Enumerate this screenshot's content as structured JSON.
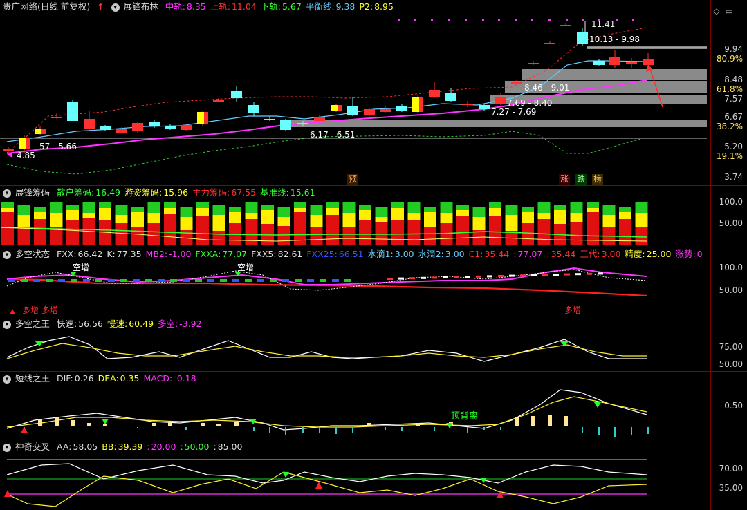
{
  "main": {
    "title": "贵广网络(日线 前复权)",
    "up_arrow": "↑",
    "indicator": "展锋布林",
    "items": [
      {
        "label": "中轨:",
        "value": "8.35",
        "color": "#ff33ff"
      },
      {
        "label": "上轨:",
        "value": "11.04",
        "color": "#ff3030"
      },
      {
        "label": "下轨:",
        "value": "5.67",
        "color": "#33ff33"
      },
      {
        "label": "平衡线:",
        "value": "9.38",
        "color": "#66ccff"
      },
      {
        "label": "P2:",
        "value": "8.95",
        "color": "#ffff33"
      }
    ],
    "right_axis": [
      "9.94",
      "80.9%",
      "8.48",
      "61.8%",
      "7.57",
      "6.67",
      "38.2%",
      "5.20",
      "19.1%",
      "3.74"
    ],
    "annotations": {
      "high": "11.41",
      "range1": "10.13 - 9.98",
      "range2": "8.46 - 9.01",
      "range3": "7.69 - 8.40",
      "range4": "7.27 - 7.69",
      "range5": "6.17 - 6.51",
      "range6": "57 - 5.66",
      "low": "4.85"
    },
    "tags": [
      {
        "text": "预",
        "color": "#ffb366"
      },
      {
        "text": "涨",
        "color": "#ff9999"
      },
      {
        "text": "跌",
        "color": "#99ff99"
      },
      {
        "text": "榜",
        "color": "#ffcc66"
      }
    ]
  },
  "chips": {
    "name": "展锋筹码",
    "items": [
      {
        "label": "散户筹码:",
        "value": "16.49",
        "color": "#33ff33"
      },
      {
        "label": "游资筹码:",
        "value": "15.96",
        "color": "#ffff33"
      },
      {
        "label": "主力筹码:",
        "value": "67.55",
        "color": "#ff3030"
      },
      {
        "label": "基准线:",
        "value": "15.61",
        "color": "#33ff33"
      }
    ],
    "axis": [
      "100.0",
      "50.00"
    ]
  },
  "longshort": {
    "name": "多空状态",
    "items": [
      {
        "label": "FXX:",
        "value": "66.42",
        "color": "#dddddd"
      },
      {
        "label": "K:",
        "value": "77.35",
        "color": "#dddddd"
      },
      {
        "label": "MB2:",
        "value": "-1.00",
        "color": "#ff33ff"
      },
      {
        "label": "FXXA:",
        "value": "77.07",
        "color": "#33ff33"
      },
      {
        "label": "FXX5:",
        "value": "82.61",
        "color": "#dddddd"
      },
      {
        "label": "FXX25:",
        "value": "66.51",
        "color": "#3355ff"
      },
      {
        "label": "水滴1:",
        "value": "3.00",
        "color": "#66ccff"
      },
      {
        "label": "水滴2:",
        "value": "3.00",
        "color": "#66ccff"
      },
      {
        "label": "C1:",
        "value": "35.44",
        "color": "#ff3030"
      },
      {
        "label": ":",
        "value": "77.07",
        "color": "#ff33ff"
      },
      {
        "label": ":",
        "value": "35.44",
        "color": "#ff3030"
      },
      {
        "label": "三代:",
        "value": "3.00",
        "color": "#ff3030"
      },
      {
        "label": "精度:",
        "value": "25.00",
        "color": "#ffff33"
      },
      {
        "label": "涨势:",
        "value": "0",
        "color": "#ff33ff"
      }
    ],
    "markers": {
      "kong": "空增",
      "duo": "多增"
    },
    "axis": [
      "100.0",
      "50.00"
    ]
  },
  "king": {
    "name": "多空之王",
    "items": [
      {
        "label": "快速:",
        "value": "56.56",
        "color": "#dddddd"
      },
      {
        "label": "慢速:",
        "value": "60.49",
        "color": "#ffff33"
      },
      {
        "label": "多空:",
        "value": "-3.92",
        "color": "#ff33ff"
      }
    ],
    "axis": [
      "75.00",
      "50.00"
    ]
  },
  "short": {
    "name": "短线之王",
    "items": [
      {
        "label": "DIF:",
        "value": "0.26",
        "color": "#dddddd"
      },
      {
        "label": "DEA:",
        "value": "0.35",
        "color": "#ffff33"
      },
      {
        "label": "MACD:",
        "value": "-0.18",
        "color": "#ff33ff"
      }
    ],
    "marker": "顶背离",
    "axis": [
      "0.50"
    ]
  },
  "cross": {
    "name": "神奇交叉",
    "items": [
      {
        "label": "AA:",
        "value": "58.05",
        "color": "#dddddd"
      },
      {
        "label": "BB:",
        "value": "39.39",
        "color": "#ffff33"
      },
      {
        "label": ":",
        "value": "20.00",
        "color": "#ff33ff"
      },
      {
        "label": ":",
        "value": "50.00",
        "color": "#33ff33"
      },
      {
        "label": ":",
        "value": "85.00",
        "color": "#dddddd"
      }
    ],
    "axis": [
      "70.00",
      "35.00"
    ]
  }
}
